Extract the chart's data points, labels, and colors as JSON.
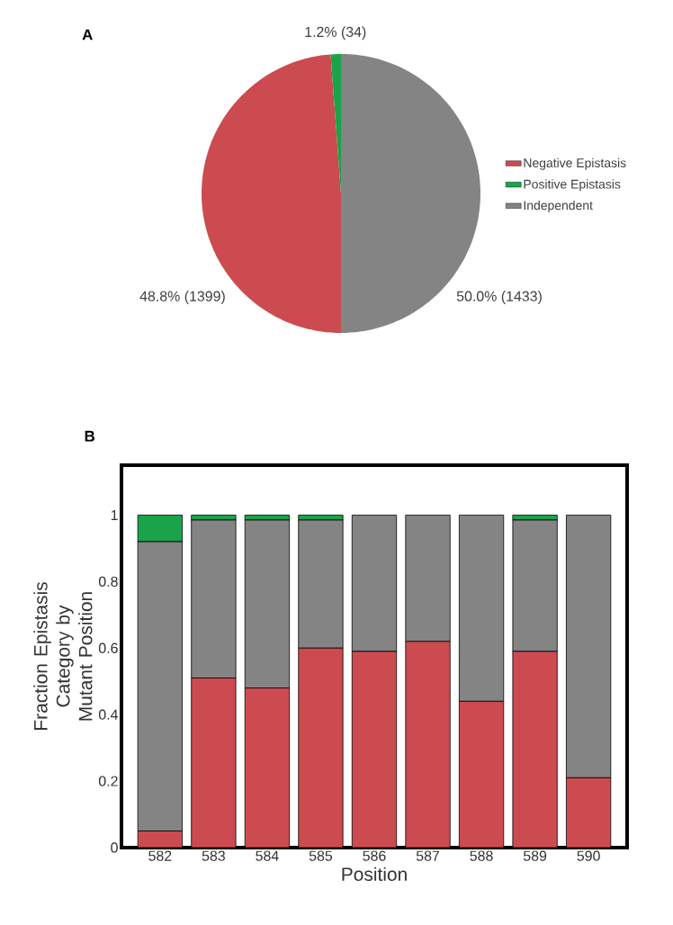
{
  "chart_data": [
    {
      "type": "pie",
      "title": "A",
      "categories": [
        "Negative Epistasis",
        "Positive Epistasis",
        "Independent"
      ],
      "values": [
        1399,
        34,
        1433
      ],
      "colors": [
        "#cc4b50",
        "#1aa34a",
        "#848484"
      ],
      "value_labels": [
        "48.8% (1399)",
        "1.2% (34)",
        "50.0% (1433)"
      ],
      "legend": "right"
    },
    {
      "type": "bar",
      "title": "B",
      "stacked": true,
      "categories": [
        "582",
        "583",
        "584",
        "585",
        "586",
        "587",
        "588",
        "589",
        "590"
      ],
      "xlabel": "Position",
      "ylabel": "Fraction Epistasis Category by Mutant Position",
      "ylim": [
        0,
        1.15
      ],
      "yticks": [
        0,
        0.2,
        0.4,
        0.6,
        0.8,
        1
      ],
      "grid": false,
      "series": [
        {
          "color": "#cc4b50",
          "values": [
            0.05,
            0.51,
            0.48,
            0.6,
            0.59,
            0.62,
            0.44,
            0.59,
            0.21
          ]
        },
        {
          "color": "#848484",
          "values": [
            0.87,
            0.475,
            0.505,
            0.385,
            0.41,
            0.38,
            0.56,
            0.395,
            0.79
          ]
        },
        {
          "color": "#1aa34a",
          "values": [
            0.08,
            0.015,
            0.015,
            0.015,
            0,
            0,
            0,
            0.015,
            0
          ]
        }
      ]
    }
  ]
}
